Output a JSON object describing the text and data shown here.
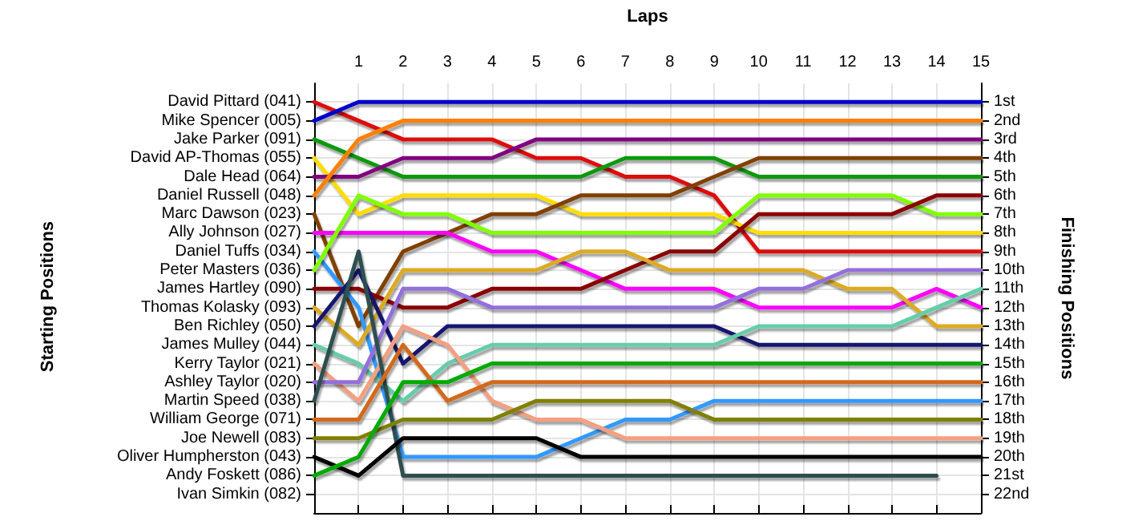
{
  "chart_data": {
    "type": "line",
    "xlabel": "Laps",
    "y2label": "Finishing Positions",
    "x": [
      0,
      1,
      2,
      3,
      4,
      5,
      6,
      7,
      8,
      9,
      10,
      11,
      12,
      13,
      14,
      15
    ],
    "xlim": [
      0,
      15
    ],
    "xticks": [
      1,
      2,
      3,
      4,
      5,
      6,
      7,
      8,
      9,
      10,
      11,
      12,
      13,
      14,
      15
    ],
    "y2lim": [
      23,
      0
    ],
    "y2ticks": [
      {
        "value": 1,
        "label": "1st"
      },
      {
        "value": 2,
        "label": "2nd"
      },
      {
        "value": 3,
        "label": "3rd"
      },
      {
        "value": 4,
        "label": "4th"
      },
      {
        "value": 5,
        "label": "5th"
      },
      {
        "value": 6,
        "label": "6th"
      },
      {
        "value": 7,
        "label": "7th"
      },
      {
        "value": 8,
        "label": "8th"
      },
      {
        "value": 9,
        "label": "9th"
      },
      {
        "value": 10,
        "label": "10th"
      },
      {
        "value": 11,
        "label": "11th"
      },
      {
        "value": 12,
        "label": "12th"
      },
      {
        "value": 13,
        "label": "13th"
      },
      {
        "value": 14,
        "label": "14th"
      },
      {
        "value": 15,
        "label": "15th"
      },
      {
        "value": 16,
        "label": "16th"
      },
      {
        "value": 17,
        "label": "17th"
      },
      {
        "value": 18,
        "label": "18th"
      },
      {
        "value": 19,
        "label": "19th"
      },
      {
        "value": 20,
        "label": "20th"
      },
      {
        "value": 21,
        "label": "21st"
      },
      {
        "value": 22,
        "label": "22nd"
      }
    ],
    "annotations": [
      "David Pittard (041)",
      "Mike Spencer (005)",
      "Jake Parker (091)",
      "David AP-Thomas (055)",
      "Dale Head (064)",
      "Daniel Russell (048)",
      "Marc Dawson (023)",
      "Ally Johnson (027)",
      "Daniel Tuffs (034)",
      "Peter Masters (036)",
      "James Hartley (090)",
      "Thomas Kolasky (093)",
      "Ben Richley (050)",
      "James Mulley (044)",
      "Kerry Taylor (021)",
      "Ashley Taylor (020)",
      "Martin Speed (038)",
      "William George (071)",
      "Joe Newell (083)",
      "Oliver Humpherston (043)",
      "Andy Foskett (086)",
      "Ivan Simkin (082)",
      "Starting Positions"
    ],
    "grid": true,
    "marker": "none",
    "line_style": "solid",
    "series": [
      {
        "axis": "y2",
        "color": "#dd1111",
        "values": [
          1,
          2,
          3,
          3,
          3,
          4,
          4,
          5,
          5,
          6,
          9,
          9,
          9,
          9,
          9,
          9
        ]
      },
      {
        "axis": "y2",
        "color": "#0000cc",
        "values": [
          2,
          1,
          1,
          1,
          1,
          1,
          1,
          1,
          1,
          1,
          1,
          1,
          1,
          1,
          1,
          1
        ]
      },
      {
        "axis": "y2",
        "color": "#119911",
        "values": [
          3,
          4,
          5,
          5,
          5,
          5,
          5,
          4,
          4,
          4,
          5,
          5,
          5,
          5,
          5,
          5
        ]
      },
      {
        "axis": "y2",
        "color": "#ffdd00",
        "values": [
          4,
          7,
          6,
          6,
          6,
          6,
          7,
          7,
          7,
          7,
          8,
          8,
          8,
          8,
          8,
          8
        ]
      },
      {
        "axis": "y2",
        "color": "#800080",
        "values": [
          5,
          5,
          4,
          4,
          4,
          3,
          3,
          3,
          3,
          3,
          3,
          3,
          3,
          3,
          3,
          3
        ]
      },
      {
        "axis": "y2",
        "color": "#ff8000",
        "values": [
          6,
          3,
          2,
          2,
          2,
          2,
          2,
          2,
          2,
          2,
          2,
          2,
          2,
          2,
          2,
          2
        ]
      },
      {
        "axis": "y2",
        "color": "#804000",
        "values": [
          7,
          13,
          9,
          8,
          7,
          7,
          6,
          6,
          6,
          5,
          4,
          4,
          4,
          4,
          4,
          4
        ]
      },
      {
        "axis": "y2",
        "color": "#ff00ff",
        "values": [
          8,
          8,
          8,
          8,
          9,
          9,
          10,
          11,
          11,
          11,
          12,
          12,
          12,
          12,
          11,
          12
        ]
      },
      {
        "axis": "y2",
        "color": "#3399ff",
        "values": [
          9,
          12,
          20,
          20,
          20,
          20,
          19,
          18,
          18,
          17,
          17,
          17,
          17,
          17,
          17,
          17
        ]
      },
      {
        "axis": "y2",
        "color": "#80ff00",
        "values": [
          10,
          6,
          7,
          7,
          8,
          8,
          8,
          8,
          8,
          8,
          6,
          6,
          6,
          6,
          7,
          7
        ]
      },
      {
        "axis": "y2",
        "color": "#8b0000",
        "values": [
          11,
          11,
          12,
          12,
          11,
          11,
          11,
          10,
          9,
          9,
          7,
          7,
          7,
          7,
          6,
          6
        ]
      },
      {
        "axis": "y2",
        "color": "#ddaa22",
        "values": [
          12,
          14,
          10,
          10,
          10,
          10,
          9,
          9,
          10,
          10,
          10,
          10,
          11,
          11,
          13,
          13
        ]
      },
      {
        "axis": "y2",
        "color": "#191970",
        "values": [
          13,
          10,
          15,
          13,
          13,
          13,
          13,
          13,
          13,
          13,
          14,
          14,
          14,
          14,
          14,
          14
        ]
      },
      {
        "axis": "y2",
        "color": "#66cdaa",
        "values": [
          14,
          15,
          17,
          15,
          14,
          14,
          14,
          14,
          14,
          14,
          13,
          13,
          13,
          13,
          12,
          11
        ]
      },
      {
        "axis": "y2",
        "color": "#f4a080",
        "values": [
          15,
          17,
          13,
          14,
          17,
          18,
          18,
          19,
          19,
          19,
          19,
          19,
          19,
          19,
          19,
          19
        ]
      },
      {
        "axis": "y2",
        "color": "#9370db",
        "values": [
          16,
          16,
          11,
          11,
          12,
          12,
          12,
          12,
          12,
          12,
          11,
          11,
          10,
          10,
          10,
          10
        ]
      },
      {
        "axis": "y2",
        "color": "#2f4f4f",
        "values": [
          17,
          9,
          21,
          21,
          21,
          21,
          21,
          21,
          21,
          21,
          21,
          21,
          21,
          21,
          21,
          null
        ]
      },
      {
        "axis": "y2",
        "color": "#d2691e",
        "values": [
          18,
          18,
          14,
          17,
          16,
          16,
          16,
          16,
          16,
          16,
          16,
          16,
          16,
          16,
          16,
          16
        ]
      },
      {
        "axis": "y2",
        "color": "#808000",
        "values": [
          19,
          19,
          18,
          18,
          18,
          17,
          17,
          17,
          17,
          18,
          18,
          18,
          18,
          18,
          18,
          18
        ]
      },
      {
        "axis": "y2",
        "color": "#000000",
        "values": [
          20,
          21,
          19,
          19,
          19,
          19,
          20,
          20,
          20,
          20,
          20,
          20,
          20,
          20,
          20,
          20
        ]
      },
      {
        "axis": "y2",
        "color": "#00aa00",
        "values": [
          21,
          20,
          16,
          16,
          15,
          15,
          15,
          15,
          15,
          15,
          15,
          15,
          15,
          15,
          15,
          15
        ]
      }
    ]
  }
}
